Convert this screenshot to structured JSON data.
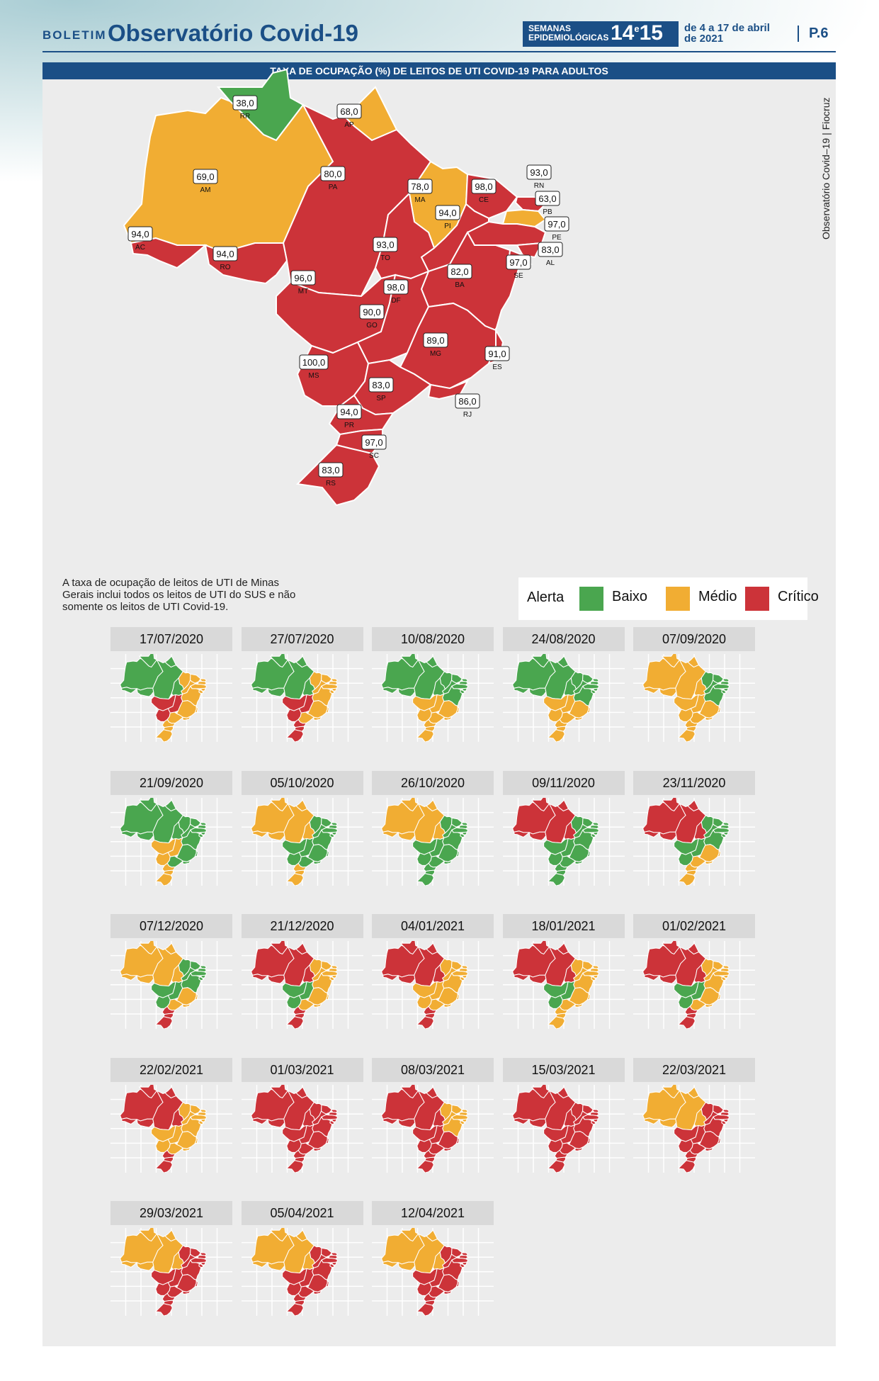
{
  "header": {
    "boletim": "BOLETIM",
    "title": "Observatório Covid-19",
    "semanas_label_1": "SEMANAS",
    "semanas_label_2": "EPIDEMIOLÓGICAS",
    "week_a": "14",
    "week_sep": "e",
    "week_b": "15",
    "dates_1": "de 4 a 17 de abril",
    "dates_2": "de 2021",
    "page": "P.6"
  },
  "banner_title": "TAXA DE OCUPAÇÃO (%) DE LEITOS DE UTI COVID-19 PARA ADULTOS",
  "credit": "Observatório Covid–19 | Fiocruz",
  "note": "A taxa de ocupação de leitos de UTI de Minas Gerais inclui todos os leitos de UTI do SUS e não somente os leitos de UTI Covid-19.",
  "colors": {
    "baixo": "#4aa64f",
    "medio": "#f1ad33",
    "critico": "#cc3339",
    "border": "#ffffff"
  },
  "legend": {
    "title": "Alerta",
    "baixo": "Baixo",
    "medio": "Médio",
    "critico": "Crítico"
  },
  "states": [
    {
      "uf": "RR",
      "value": "38,0",
      "level": "baixo"
    },
    {
      "uf": "AP",
      "value": "68,0",
      "level": "medio"
    },
    {
      "uf": "AM",
      "value": "69,0",
      "level": "medio"
    },
    {
      "uf": "PA",
      "value": "80,0",
      "level": "critico"
    },
    {
      "uf": "MA",
      "value": "78,0",
      "level": "medio"
    },
    {
      "uf": "CE",
      "value": "98,0",
      "level": "critico"
    },
    {
      "uf": "RN",
      "value": "93,0",
      "level": "critico"
    },
    {
      "uf": "PB",
      "value": "63,0",
      "level": "medio"
    },
    {
      "uf": "PE",
      "value": "97,0",
      "level": "critico"
    },
    {
      "uf": "AL",
      "value": "83,0",
      "level": "critico"
    },
    {
      "uf": "SE",
      "value": "97,0",
      "level": "critico"
    },
    {
      "uf": "PI",
      "value": "94,0",
      "level": "critico"
    },
    {
      "uf": "AC",
      "value": "94,0",
      "level": "critico"
    },
    {
      "uf": "RO",
      "value": "94,0",
      "level": "critico"
    },
    {
      "uf": "TO",
      "value": "93,0",
      "level": "critico"
    },
    {
      "uf": "MT",
      "value": "96,0",
      "level": "critico"
    },
    {
      "uf": "BA",
      "value": "82,0",
      "level": "critico"
    },
    {
      "uf": "DF",
      "value": "98,0",
      "level": "critico"
    },
    {
      "uf": "GO",
      "value": "90,0",
      "level": "critico"
    },
    {
      "uf": "MG",
      "value": "89,0",
      "level": "critico"
    },
    {
      "uf": "ES",
      "value": "91,0",
      "level": "critico"
    },
    {
      "uf": "MS",
      "value": "100,0",
      "level": "critico"
    },
    {
      "uf": "SP",
      "value": "83,0",
      "level": "critico"
    },
    {
      "uf": "RJ",
      "value": "86,0",
      "level": "critico"
    },
    {
      "uf": "PR",
      "value": "94,0",
      "level": "critico"
    },
    {
      "uf": "SC",
      "value": "97,0",
      "level": "critico"
    },
    {
      "uf": "RS",
      "value": "83,0",
      "level": "critico"
    }
  ],
  "timeline": [
    {
      "date": "17/07/2020",
      "colors": {
        "north": "baixo",
        "northeast": "medio",
        "centerwest": "critico",
        "southeast": "medio",
        "south": "medio"
      }
    },
    {
      "date": "27/07/2020",
      "colors": {
        "north": "baixo",
        "northeast": "medio",
        "centerwest": "critico",
        "southeast": "medio",
        "south": "critico"
      }
    },
    {
      "date": "10/08/2020",
      "colors": {
        "north": "baixo",
        "northeast": "baixo",
        "centerwest": "medio",
        "southeast": "medio",
        "south": "medio"
      }
    },
    {
      "date": "24/08/2020",
      "colors": {
        "north": "baixo",
        "northeast": "baixo",
        "centerwest": "medio",
        "southeast": "medio",
        "south": "medio"
      }
    },
    {
      "date": "07/09/2020",
      "colors": {
        "north": "medio",
        "northeast": "baixo",
        "centerwest": "medio",
        "southeast": "medio",
        "south": "medio"
      }
    },
    {
      "date": "21/09/2020",
      "colors": {
        "north": "baixo",
        "northeast": "baixo",
        "centerwest": "medio",
        "southeast": "baixo",
        "south": "medio"
      }
    },
    {
      "date": "05/10/2020",
      "colors": {
        "north": "medio",
        "northeast": "baixo",
        "centerwest": "baixo",
        "southeast": "baixo",
        "south": "medio"
      }
    },
    {
      "date": "26/10/2020",
      "colors": {
        "north": "medio",
        "northeast": "baixo",
        "centerwest": "baixo",
        "southeast": "baixo",
        "south": "baixo"
      }
    },
    {
      "date": "09/11/2020",
      "colors": {
        "north": "critico",
        "northeast": "baixo",
        "centerwest": "baixo",
        "southeast": "baixo",
        "south": "baixo"
      }
    },
    {
      "date": "23/11/2020",
      "colors": {
        "north": "critico",
        "northeast": "baixo",
        "centerwest": "baixo",
        "southeast": "medio",
        "south": "medio"
      }
    },
    {
      "date": "07/12/2020",
      "colors": {
        "north": "medio",
        "northeast": "baixo",
        "centerwest": "baixo",
        "southeast": "medio",
        "south": "critico"
      }
    },
    {
      "date": "21/12/2020",
      "colors": {
        "north": "critico",
        "northeast": "medio",
        "centerwest": "baixo",
        "southeast": "medio",
        "south": "critico"
      }
    },
    {
      "date": "04/01/2021",
      "colors": {
        "north": "critico",
        "northeast": "medio",
        "centerwest": "medio",
        "southeast": "medio",
        "south": "critico"
      }
    },
    {
      "date": "18/01/2021",
      "colors": {
        "north": "critico",
        "northeast": "medio",
        "centerwest": "baixo",
        "southeast": "medio",
        "south": "medio"
      }
    },
    {
      "date": "01/02/2021",
      "colors": {
        "north": "critico",
        "northeast": "medio",
        "centerwest": "baixo",
        "southeast": "medio",
        "south": "critico"
      }
    },
    {
      "date": "22/02/2021",
      "colors": {
        "north": "critico",
        "northeast": "medio",
        "centerwest": "medio",
        "southeast": "medio",
        "south": "critico"
      }
    },
    {
      "date": "01/03/2021",
      "colors": {
        "north": "critico",
        "northeast": "critico",
        "centerwest": "critico",
        "southeast": "critico",
        "south": "critico"
      }
    },
    {
      "date": "08/03/2021",
      "colors": {
        "north": "critico",
        "northeast": "medio",
        "centerwest": "critico",
        "southeast": "critico",
        "south": "critico"
      }
    },
    {
      "date": "15/03/2021",
      "colors": {
        "north": "critico",
        "northeast": "critico",
        "centerwest": "critico",
        "southeast": "critico",
        "south": "critico"
      }
    },
    {
      "date": "22/03/2021",
      "colors": {
        "north": "medio",
        "northeast": "critico",
        "centerwest": "critico",
        "southeast": "critico",
        "south": "critico"
      }
    },
    {
      "date": "29/03/2021",
      "colors": {
        "north": "medio",
        "northeast": "critico",
        "centerwest": "critico",
        "southeast": "critico",
        "south": "critico"
      }
    },
    {
      "date": "05/04/2021",
      "colors": {
        "north": "medio",
        "northeast": "critico",
        "centerwest": "critico",
        "southeast": "critico",
        "south": "critico"
      }
    },
    {
      "date": "12/04/2021",
      "colors": {
        "north": "medio",
        "northeast": "critico",
        "centerwest": "critico",
        "southeast": "critico",
        "south": "critico"
      }
    }
  ]
}
